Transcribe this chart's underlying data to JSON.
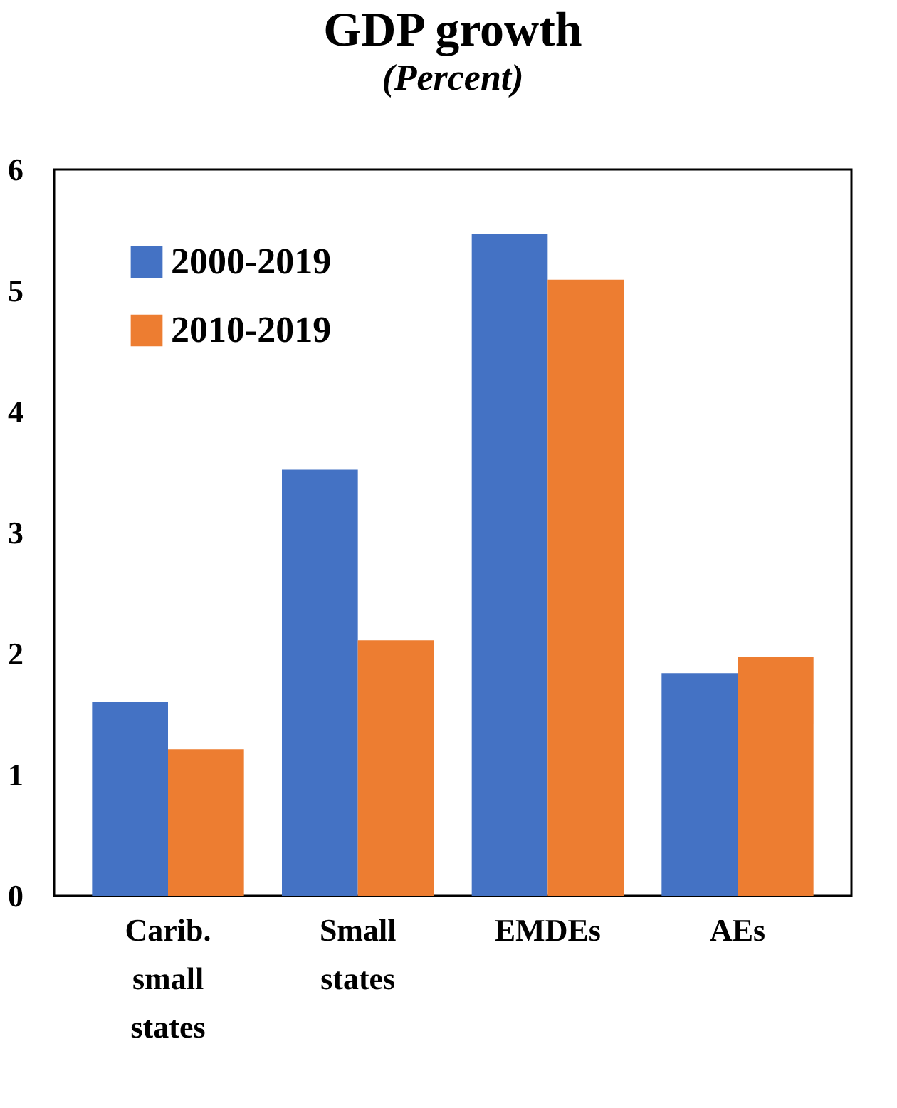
{
  "chart_data": {
    "type": "bar",
    "title": "GDP growth",
    "subtitle": "(Percent)",
    "categories": [
      "Carib. small states",
      "Small states",
      "EMDEs",
      "AEs"
    ],
    "series": [
      {
        "name": "2000-2019",
        "color": "#4472c4",
        "values": [
          1.6,
          3.52,
          5.47,
          1.84
        ]
      },
      {
        "name": "2010-2019",
        "color": "#ed7d31",
        "values": [
          1.21,
          2.11,
          5.09,
          1.97
        ]
      }
    ],
    "ylim": [
      0,
      6
    ],
    "yticks": [
      0,
      1,
      2,
      3,
      4,
      5,
      6
    ],
    "grid": false,
    "legend": "top left"
  }
}
